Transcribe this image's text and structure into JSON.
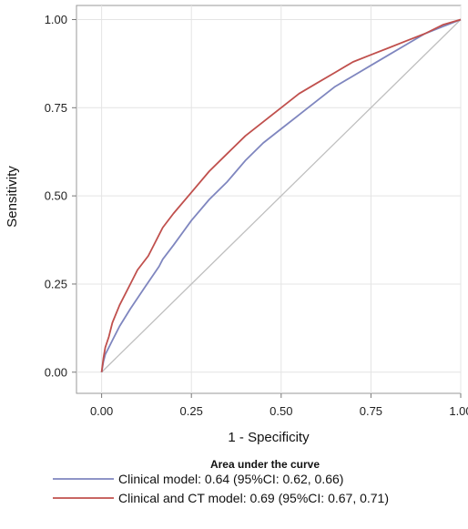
{
  "chart_data": {
    "type": "line",
    "xlabel": "1 - Specificity",
    "ylabel": "Sensitivity",
    "xlim": [
      -0.07,
      1.0
    ],
    "ylim": [
      -0.06,
      1.04
    ],
    "xticks": [
      "0.00",
      "0.25",
      "0.50",
      "0.75",
      "1.00"
    ],
    "yticks": [
      "0.00",
      "0.25",
      "0.50",
      "0.75",
      "1.00"
    ],
    "grid": true,
    "legend": {
      "title": "Area under the curve",
      "placement": "bottom"
    },
    "reference_line": {
      "x": [
        0,
        1
      ],
      "y": [
        0,
        1
      ],
      "color": "#bfbfbf"
    },
    "series": [
      {
        "name": "Clinical model: 0.64 (95%CI: 0.62, 0.66)",
        "color": "#7f86bf",
        "x": [
          0,
          0.005,
          0.01,
          0.02,
          0.03,
          0.05,
          0.08,
          0.12,
          0.16,
          0.17,
          0.2,
          0.25,
          0.3,
          0.35,
          0.4,
          0.45,
          0.5,
          0.55,
          0.6,
          0.65,
          0.7,
          0.75,
          0.8,
          0.85,
          0.9,
          0.95,
          1.0
        ],
        "y": [
          0,
          0.03,
          0.05,
          0.07,
          0.09,
          0.13,
          0.18,
          0.24,
          0.3,
          0.32,
          0.36,
          0.43,
          0.49,
          0.54,
          0.6,
          0.65,
          0.69,
          0.73,
          0.77,
          0.81,
          0.84,
          0.87,
          0.9,
          0.93,
          0.96,
          0.98,
          1.0
        ]
      },
      {
        "name": "Clinical and CT model: 0.69 (95%CI: 0.67, 0.71)",
        "color": "#c0504d",
        "x": [
          0,
          0.005,
          0.01,
          0.02,
          0.03,
          0.05,
          0.08,
          0.1,
          0.13,
          0.15,
          0.17,
          0.2,
          0.25,
          0.3,
          0.35,
          0.4,
          0.45,
          0.5,
          0.55,
          0.6,
          0.65,
          0.7,
          0.75,
          0.8,
          0.85,
          0.9,
          0.95,
          1.0
        ],
        "y": [
          0,
          0.04,
          0.07,
          0.1,
          0.14,
          0.19,
          0.25,
          0.29,
          0.33,
          0.37,
          0.41,
          0.45,
          0.51,
          0.57,
          0.62,
          0.67,
          0.71,
          0.75,
          0.79,
          0.82,
          0.85,
          0.88,
          0.9,
          0.92,
          0.94,
          0.96,
          0.985,
          1.0
        ]
      }
    ]
  }
}
